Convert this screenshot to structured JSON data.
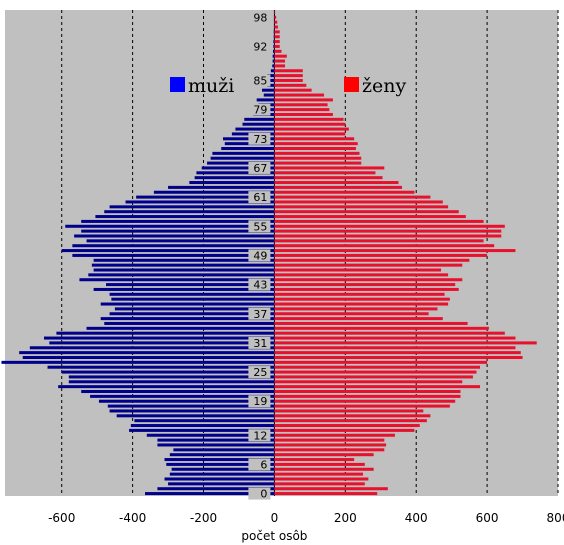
{
  "chart_data": {
    "type": "bar",
    "orientation": "horizontal",
    "title": "",
    "xlabel": "počet osôb",
    "ylabel": "",
    "xlim": [
      -760,
      800
    ],
    "x_ticks": [
      -600,
      -400,
      -200,
      0,
      200,
      400,
      600,
      800
    ],
    "y_ticks": [
      0,
      6,
      12,
      19,
      25,
      31,
      37,
      43,
      49,
      55,
      61,
      67,
      73,
      79,
      85,
      92,
      98
    ],
    "grid": "vertical-dashed",
    "background": "#c0c0c0",
    "legend_placement": "top",
    "ages": [
      0,
      1,
      2,
      3,
      4,
      5,
      6,
      7,
      8,
      9,
      10,
      11,
      12,
      13,
      14,
      15,
      16,
      17,
      18,
      19,
      20,
      21,
      22,
      23,
      24,
      25,
      26,
      27,
      28,
      29,
      30,
      31,
      32,
      33,
      34,
      35,
      36,
      37,
      38,
      39,
      40,
      41,
      42,
      43,
      44,
      45,
      46,
      47,
      48,
      49,
      50,
      51,
      52,
      53,
      54,
      55,
      56,
      57,
      58,
      59,
      60,
      61,
      62,
      63,
      64,
      65,
      66,
      67,
      68,
      69,
      70,
      71,
      72,
      73,
      74,
      75,
      76,
      77,
      78,
      79,
      80,
      81,
      82,
      83,
      84,
      85,
      86,
      87,
      88,
      89,
      90,
      91,
      92,
      93,
      94,
      95,
      96,
      97,
      98,
      99
    ],
    "series": [
      {
        "name": "muži",
        "color": "#00008b",
        "legend_color": "#0000ff",
        "values": [
          365,
          330,
          300,
          310,
          295,
          290,
          305,
          310,
          295,
          285,
          330,
          330,
          360,
          410,
          405,
          395,
          445,
          465,
          470,
          495,
          520,
          545,
          610,
          580,
          580,
          600,
          640,
          770,
          710,
          720,
          690,
          635,
          650,
          615,
          530,
          480,
          490,
          465,
          450,
          490,
          460,
          465,
          510,
          475,
          550,
          525,
          510,
          515,
          510,
          570,
          600,
          570,
          530,
          565,
          545,
          590,
          545,
          505,
          480,
          465,
          420,
          390,
          340,
          300,
          240,
          225,
          220,
          205,
          190,
          180,
          175,
          150,
          140,
          145,
          120,
          110,
          90,
          85,
          60,
          65,
          45,
          50,
          30,
          35,
          20,
          15,
          20,
          10,
          6,
          5,
          5,
          4,
          3,
          3,
          2,
          2,
          1,
          1,
          1,
          0
        ]
      },
      {
        "name": "ženy",
        "color": "#e8112d",
        "legend_color": "#ff0000",
        "values": [
          290,
          320,
          255,
          265,
          250,
          280,
          255,
          225,
          280,
          310,
          315,
          310,
          340,
          395,
          410,
          430,
          440,
          420,
          495,
          510,
          525,
          525,
          580,
          530,
          560,
          570,
          580,
          600,
          700,
          695,
          680,
          740,
          680,
          650,
          605,
          545,
          475,
          435,
          460,
          490,
          495,
          480,
          520,
          510,
          530,
          490,
          470,
          530,
          550,
          600,
          680,
          620,
          590,
          640,
          640,
          650,
          590,
          540,
          520,
          490,
          475,
          440,
          395,
          360,
          350,
          305,
          285,
          310,
          245,
          245,
          240,
          230,
          235,
          225,
          200,
          210,
          200,
          195,
          165,
          155,
          150,
          165,
          140,
          105,
          90,
          80,
          80,
          80,
          30,
          30,
          35,
          20,
          15,
          15,
          15,
          15,
          10,
          8,
          5,
          2
        ]
      }
    ]
  }
}
